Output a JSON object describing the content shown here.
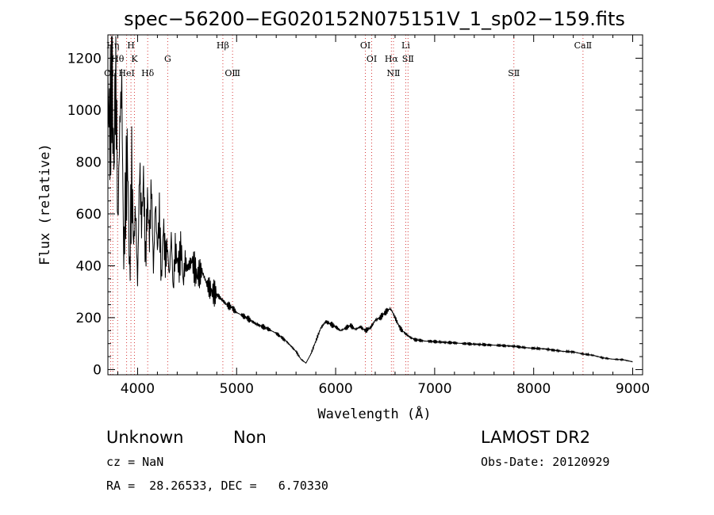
{
  "chart_data": {
    "type": "line",
    "title": "spec−56200−EG020152N075151V_1_sp02−159.fits",
    "xlabel": "Wavelength (Å)",
    "ylabel": "Flux (relative)",
    "xlim": [
      3700,
      9100
    ],
    "ylim": [
      -20,
      1290
    ],
    "x_ticks": [
      4000,
      5000,
      6000,
      7000,
      8000,
      9000
    ],
    "y_ticks": [
      0,
      200,
      400,
      600,
      800,
      1000,
      1200
    ],
    "grid": false,
    "series": [
      {
        "x": [
          3700,
          3720,
          3740,
          3760,
          3780,
          3800,
          3820,
          3840,
          3860,
          3880,
          3900,
          3920,
          3940,
          3960,
          3980,
          4000,
          4020,
          4040,
          4060,
          4080,
          4100,
          4120,
          4140,
          4160,
          4180,
          4200,
          4220,
          4240,
          4260,
          4280,
          4300,
          4320,
          4340,
          4360,
          4380,
          4400,
          4420,
          4440,
          4460,
          4480,
          4500,
          4550,
          4600,
          4650,
          4700,
          4750,
          4800,
          4850,
          4900,
          4950,
          5000,
          5100,
          5200,
          5300,
          5400,
          5500,
          5600,
          5650,
          5700,
          5750,
          5800,
          5850,
          5900,
          5950,
          6000,
          6050,
          6100,
          6150,
          6200,
          6250,
          6300,
          6350,
          6400,
          6450,
          6500,
          6550,
          6570,
          6600,
          6650,
          6700,
          6750,
          6800,
          6900,
          7000,
          7100,
          7200,
          7300,
          7400,
          7500,
          7600,
          7700,
          7800,
          7900,
          8000,
          8100,
          8200,
          8300,
          8400,
          8500,
          8600,
          8700,
          8800,
          8900,
          9000
        ],
        "y": [
          1060,
          920,
          1200,
          760,
          1230,
          540,
          950,
          1100,
          420,
          680,
          820,
          360,
          760,
          480,
          620,
          330,
          780,
          560,
          740,
          420,
          660,
          500,
          720,
          380,
          650,
          460,
          600,
          340,
          560,
          420,
          480,
          360,
          520,
          300,
          470,
          420,
          400,
          480,
          330,
          420,
          390,
          420,
          360,
          380,
          330,
          300,
          290,
          270,
          250,
          240,
          220,
          200,
          175,
          160,
          140,
          110,
          70,
          40,
          25,
          60,
          110,
          160,
          185,
          175,
          165,
          150,
          160,
          170,
          155,
          165,
          150,
          160,
          190,
          200,
          220,
          235,
          225,
          200,
          160,
          140,
          125,
          115,
          110,
          108,
          105,
          103,
          100,
          98,
          96,
          94,
          92,
          90,
          85,
          82,
          80,
          75,
          70,
          68,
          60,
          55,
          45,
          40,
          38,
          30
        ]
      }
    ],
    "spectral_lines": [
      {
        "label": "OⅡ",
        "x": 3727,
        "row": 3
      },
      {
        "label": "Hη",
        "x": 3750,
        "row": 1
      },
      {
        "label": "Hθ",
        "x": 3798,
        "row": 2
      },
      {
        "label": "HeI",
        "x": 3889,
        "row": 3
      },
      {
        "label": "H",
        "x": 3933,
        "row": 1
      },
      {
        "label": "K",
        "x": 3968,
        "row": 2
      },
      {
        "label": "Hδ",
        "x": 4102,
        "row": 3
      },
      {
        "label": "G",
        "x": 4304,
        "row": 2
      },
      {
        "label": "Hβ",
        "x": 4861,
        "row": 1
      },
      {
        "label": "OⅢ",
        "x": 4959,
        "row": 3
      },
      {
        "label": "OI",
        "x": 6300,
        "row": 1
      },
      {
        "label": "OI",
        "x": 6364,
        "row": 2
      },
      {
        "label": "Hα",
        "x": 6563,
        "row": 2
      },
      {
        "label": "NⅡ",
        "x": 6584,
        "row": 3
      },
      {
        "label": "Li",
        "x": 6708,
        "row": 1
      },
      {
        "label": "SⅡ",
        "x": 6731,
        "row": 2
      },
      {
        "label": "SⅡ",
        "x": 7800,
        "row": 3
      },
      {
        "label": "CaⅡ",
        "x": 8498,
        "row": 1
      }
    ]
  },
  "info": {
    "object_class": "Unknown",
    "subclass": "Non",
    "survey": "LAMOST DR2",
    "cz": "cz = NaN",
    "obs_date": "Obs-Date: 20120929",
    "coords": "RA =  28.26533, DEC =   6.70330"
  },
  "colors": {
    "line_markers": "#d63a3a",
    "spectrum": "#000000"
  }
}
